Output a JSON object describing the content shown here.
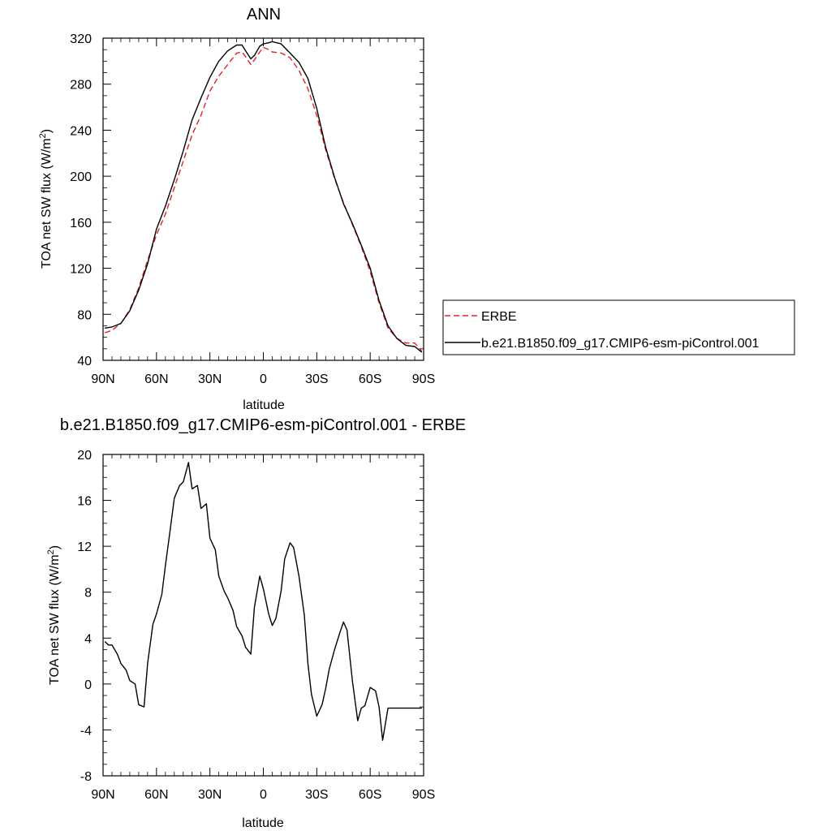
{
  "chart_data": [
    {
      "type": "line",
      "title": "ANN",
      "xlabel": "latitude",
      "ylabel": "TOA net SW flux (W/m",
      "ylabel_sup": "2",
      "ylabel_tail": ")",
      "xlim": [
        90,
        -90
      ],
      "ylim": [
        40,
        320
      ],
      "xticks": [
        90,
        60,
        30,
        0,
        -30,
        -60,
        -90
      ],
      "xtick_labels": [
        "90N",
        "60N",
        "30N",
        "0",
        "30S",
        "60S",
        "90S"
      ],
      "yticks": [
        40,
        80,
        120,
        160,
        200,
        240,
        280,
        320
      ],
      "ytick_labels": [
        "40",
        "80",
        "120",
        "160",
        "200",
        "240",
        "280",
        "320"
      ],
      "legend_position": "right",
      "series": [
        {
          "name": "ERBE",
          "color": "#e8202a",
          "dash": "dashed",
          "x": [
            89,
            85,
            80,
            75,
            70,
            65,
            60,
            55,
            50,
            45,
            40,
            35,
            30,
            25,
            20,
            15,
            12,
            10,
            7,
            5,
            2,
            0,
            -3,
            -5,
            -10,
            -15,
            -20,
            -25,
            -30,
            -35,
            -40,
            -45,
            -50,
            -55,
            -60,
            -65,
            -70,
            -75,
            -80,
            -85,
            -89
          ],
          "y": [
            64,
            66,
            72,
            84,
            103,
            127,
            149,
            167,
            190,
            213,
            236,
            253,
            274,
            287,
            297,
            307,
            308,
            304,
            297,
            301,
            308,
            312,
            310,
            308,
            307,
            303,
            292,
            276,
            253,
            223,
            198,
            177,
            158,
            139,
            117,
            90,
            68,
            59,
            55,
            55,
            48
          ]
        },
        {
          "name": "b.e21.B1850.f09_g17.CMIP6-esm-piControl.001",
          "color": "#000000",
          "dash": "solid",
          "x": [
            89,
            85,
            80,
            75,
            70,
            65,
            60,
            55,
            50,
            45,
            40,
            35,
            30,
            25,
            20,
            15,
            12,
            10,
            7,
            5,
            2,
            0,
            -3,
            -5,
            -10,
            -15,
            -20,
            -25,
            -30,
            -35,
            -40,
            -45,
            -50,
            -55,
            -60,
            -65,
            -70,
            -75,
            -80,
            -85,
            -89
          ],
          "y": [
            68,
            69,
            72,
            83,
            101,
            124,
            154,
            174,
            197,
            222,
            249,
            268,
            286,
            300,
            309,
            314,
            314,
            309,
            302,
            305,
            313,
            315,
            316,
            317,
            315,
            307,
            299,
            285,
            259,
            225,
            199,
            176,
            159,
            140,
            120,
            92,
            70,
            59,
            53,
            52,
            47
          ]
        }
      ]
    },
    {
      "type": "line",
      "title": "b.e21.B1850.f09_g17.CMIP6-esm-piControl.001 - ERBE",
      "xlabel": "latitude",
      "ylabel": "TOA net SW flux (W/m",
      "ylabel_sup": "2",
      "ylabel_tail": ")",
      "xlim": [
        90,
        -90
      ],
      "ylim": [
        -8,
        20
      ],
      "xticks": [
        90,
        60,
        30,
        0,
        -30,
        -60,
        -90
      ],
      "xtick_labels": [
        "90N",
        "60N",
        "30N",
        "0",
        "30S",
        "60S",
        "90S"
      ],
      "yticks": [
        -8,
        -4,
        0,
        4,
        8,
        12,
        16,
        20
      ],
      "ytick_labels": [
        "-8",
        "-4",
        "0",
        "4",
        "8",
        "12",
        "16",
        "20"
      ],
      "series": [
        {
          "color": "#000000",
          "x": [
            89,
            87,
            85,
            82,
            80,
            77,
            75,
            72,
            70,
            67,
            65,
            62,
            60,
            57,
            55,
            52,
            50,
            47,
            45,
            42,
            40,
            37,
            35,
            32,
            30,
            27,
            25,
            22,
            20,
            17,
            15,
            12,
            10,
            7,
            5,
            2,
            0,
            -3,
            -5,
            -7,
            -10,
            -12,
            -15,
            -17,
            -20,
            -23,
            -25,
            -27,
            -30,
            -33,
            -35,
            -37,
            -40,
            -43,
            -45,
            -47,
            -50,
            -53,
            -55,
            -57,
            -60,
            -63,
            -65,
            -67,
            -70,
            -73,
            -75,
            -77,
            -80,
            -82,
            -85,
            -87,
            -89
          ],
          "y": [
            3.7,
            3.4,
            3.4,
            2.6,
            1.8,
            1.2,
            0.3,
            0.0,
            -1.8,
            -2.0,
            1.8,
            5.2,
            6.1,
            7.8,
            10.3,
            13.8,
            16.2,
            17.3,
            17.6,
            19.3,
            17.0,
            17.3,
            15.3,
            15.7,
            12.7,
            11.7,
            9.4,
            8.1,
            7.5,
            6.4,
            5.0,
            4.2,
            3.2,
            2.6,
            6.7,
            9.4,
            8.3,
            6.1,
            5.1,
            5.7,
            8.1,
            10.9,
            12.3,
            11.9,
            9.4,
            6.0,
            1.8,
            -0.9,
            -2.8,
            -1.8,
            -0.4,
            1.3,
            3.0,
            4.5,
            5.4,
            4.7,
            0.3,
            -3.2,
            -2.1,
            -1.9,
            -0.3,
            -0.6,
            -2.0,
            -4.9,
            -2.1,
            -2.1,
            -2.1,
            -2.1,
            -2.1,
            -2.1,
            -2.1,
            -2.1,
            -2.1
          ]
        }
      ]
    }
  ]
}
